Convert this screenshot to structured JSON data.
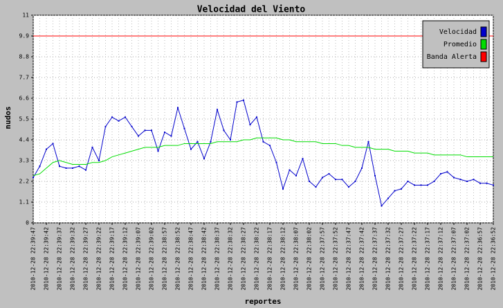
{
  "chart_data": {
    "type": "line",
    "title": "Velocidad del Viento",
    "x_label": "reportes",
    "y_label": "nudos",
    "categories": [
      "2010-12-28 22:39:47",
      null,
      "2010-12-28 22:39:42",
      null,
      "2010-12-28 22:39:37",
      null,
      "2010-12-28 22:39:32",
      null,
      "2010-12-28 22:39:27",
      null,
      "2010-12-28 22:39:22",
      null,
      "2010-12-28 22:39:17",
      null,
      "2010-12-28 22:39:12",
      null,
      "2010-12-28 22:39:07",
      null,
      "2010-12-28 22:39:02",
      null,
      "2010-12-28 22:38:57",
      null,
      "2010-12-28 22:38:52",
      null,
      "2010-12-28 22:38:47",
      null,
      "2010-12-28 22:38:42",
      null,
      "2010-12-28 22:38:37",
      null,
      "2010-12-28 22:38:32",
      null,
      "2010-12-28 22:38:27",
      null,
      "2010-12-28 22:38:22",
      null,
      "2010-12-28 22:38:17",
      null,
      "2010-12-28 22:38:12",
      null,
      "2010-12-28 22:38:07",
      null,
      "2010-12-28 22:38:02",
      null,
      "2010-12-28 22:37:57",
      null,
      "2010-12-28 22:37:52",
      null,
      "2010-12-28 22:37:47",
      null,
      "2010-12-28 22:37:42",
      null,
      "2010-12-28 22:37:37",
      null,
      "2010-12-28 22:37:32",
      null,
      "2010-12-28 22:37:27",
      null,
      "2010-12-28 22:37:22",
      null,
      "2010-12-28 22:37:17",
      null,
      "2010-12-28 22:37:12",
      null,
      "2010-12-28 22:37:07",
      null,
      "2010-12-28 22:37:02",
      null,
      "2010-12-28 22:36:57",
      null,
      "2010-12-28 22:36:52"
    ],
    "series": [
      {
        "name": "Velocidad",
        "color": "#0000cc",
        "markers": true,
        "values": [
          2.4,
          3.0,
          3.9,
          4.2,
          3.0,
          2.9,
          2.9,
          3.0,
          2.8,
          4.0,
          3.3,
          5.1,
          5.6,
          5.4,
          5.6,
          5.1,
          4.6,
          4.9,
          4.9,
          3.8,
          4.8,
          4.6,
          6.1,
          5.0,
          3.9,
          4.3,
          3.4,
          4.3,
          6.0,
          4.9,
          4.4,
          6.4,
          6.5,
          5.2,
          5.6,
          4.3,
          4.1,
          3.2,
          1.8,
          2.8,
          2.5,
          3.4,
          2.2,
          1.9,
          2.4,
          2.6,
          2.3,
          2.3,
          1.9,
          2.2,
          2.9,
          4.3,
          2.5,
          0.9,
          1.3,
          1.7,
          1.8,
          2.2,
          2.0,
          2.0,
          2.0,
          2.2,
          2.6,
          2.7,
          2.4,
          2.3,
          2.2,
          2.3,
          2.1,
          2.1,
          2.0
        ]
      },
      {
        "name": "Promedio",
        "color": "#00dd00",
        "values": [
          2.5,
          2.6,
          2.9,
          3.2,
          3.3,
          3.2,
          3.1,
          3.1,
          3.1,
          3.2,
          3.2,
          3.3,
          3.5,
          3.6,
          3.7,
          3.8,
          3.9,
          4.0,
          4.0,
          4.0,
          4.1,
          4.1,
          4.1,
          4.2,
          4.2,
          4.2,
          4.2,
          4.2,
          4.3,
          4.3,
          4.3,
          4.3,
          4.4,
          4.4,
          4.5,
          4.5,
          4.5,
          4.5,
          4.4,
          4.4,
          4.3,
          4.3,
          4.3,
          4.3,
          4.2,
          4.2,
          4.2,
          4.1,
          4.1,
          4.0,
          4.0,
          4.0,
          3.9,
          3.9,
          3.9,
          3.8,
          3.8,
          3.8,
          3.7,
          3.7,
          3.7,
          3.6,
          3.6,
          3.6,
          3.6,
          3.6,
          3.5,
          3.5,
          3.5,
          3.5,
          3.5
        ]
      },
      {
        "name": "Banda Alerta",
        "color": "#ff0000",
        "values": [
          9.9,
          9.9,
          9.9,
          9.9,
          9.9,
          9.9,
          9.9,
          9.9,
          9.9,
          9.9,
          9.9,
          9.9,
          9.9,
          9.9,
          9.9,
          9.9,
          9.9,
          9.9,
          9.9,
          9.9,
          9.9,
          9.9,
          9.9,
          9.9,
          9.9,
          9.9,
          9.9,
          9.9,
          9.9,
          9.9,
          9.9,
          9.9,
          9.9,
          9.9,
          9.9,
          9.9,
          9.9,
          9.9,
          9.9,
          9.9,
          9.9,
          9.9,
          9.9,
          9.9,
          9.9,
          9.9,
          9.9,
          9.9,
          9.9,
          9.9,
          9.9,
          9.9,
          9.9,
          9.9,
          9.9,
          9.9,
          9.9,
          9.9,
          9.9,
          9.9,
          9.9,
          9.9,
          9.9,
          9.9,
          9.9,
          9.9,
          9.9,
          9.9,
          9.9,
          9.9,
          9.9
        ]
      }
    ],
    "ylim": [
      0,
      11
    ],
    "yticks": [
      0,
      1.1,
      2.2,
      3.3,
      4.4,
      5.5,
      6.6,
      7.7,
      8.8,
      9.9,
      11
    ],
    "grid": true,
    "legend": "upper right"
  }
}
